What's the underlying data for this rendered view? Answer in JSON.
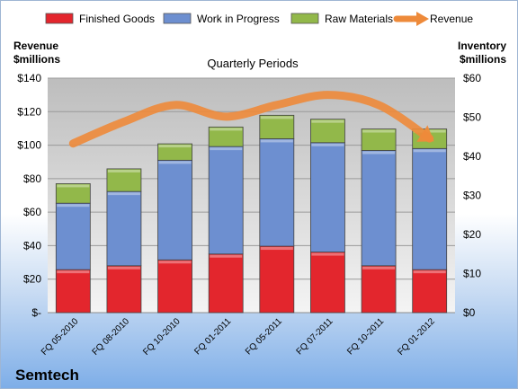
{
  "chart_data": {
    "type": "bar",
    "title": "Quarterly Periods",
    "company": "Semtech",
    "left_axis_label": [
      "Revenue",
      "$millions"
    ],
    "right_axis_label": [
      "Inventory",
      "$millions"
    ],
    "categories": [
      "FQ 05-2010",
      "FQ 08-2010",
      "FQ 10-2010",
      "FQ 01-2011",
      "FQ 05-2011",
      "FQ 07-2011",
      "FQ 10-2011",
      "FQ 01-2012"
    ],
    "stacked": true,
    "series": [
      {
        "name": "Finished Goods",
        "axis": "right",
        "color": "#e3262d",
        "values": [
          11,
          12,
          13.5,
          15,
          17,
          15.5,
          12,
          11
        ]
      },
      {
        "name": "Work in Progress",
        "axis": "right",
        "color": "#6d8fd0",
        "values": [
          17,
          19,
          25.5,
          27.5,
          27.5,
          28,
          29.5,
          31
        ]
      },
      {
        "name": "Raw Materials",
        "axis": "right",
        "color": "#92b84a",
        "values": [
          5,
          5.8,
          4.2,
          5,
          6,
          6,
          5.5,
          5
        ]
      }
    ],
    "line_series": {
      "name": "Revenue",
      "axis": "left",
      "color": "#ee8a3a",
      "values": [
        101,
        114,
        124,
        117,
        124,
        130,
        124,
        104
      ]
    },
    "left_axis": {
      "min": 0,
      "max": 140,
      "ticks": [
        0,
        20,
        40,
        60,
        80,
        100,
        120,
        140
      ],
      "tick_labels": [
        "$-",
        "$20",
        "$40",
        "$60",
        "$80",
        "$100",
        "$120",
        "$140"
      ]
    },
    "right_axis": {
      "min": 0,
      "max": 60,
      "ticks": [
        0,
        10,
        20,
        30,
        40,
        50,
        60
      ],
      "tick_labels": [
        "$0",
        "$10",
        "$20",
        "$30",
        "$40",
        "$50",
        "$60"
      ]
    },
    "legend": {
      "placement": "top"
    }
  }
}
